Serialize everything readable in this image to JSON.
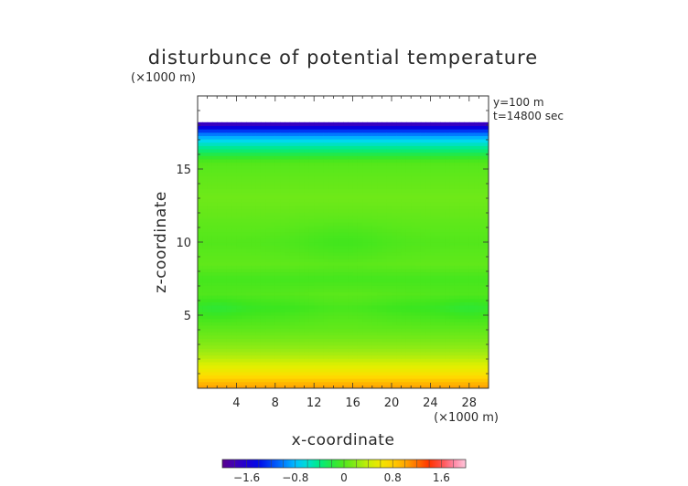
{
  "chart_data": {
    "type": "heatmap",
    "title": "disturbunce of potential temperature",
    "xlabel": "x-coordinate",
    "ylabel": "z-coordinate",
    "x_unit": "(×1000 m)",
    "y_unit": "(×1000 m)",
    "annotations": [
      "y=100 m",
      "t=14800 sec"
    ],
    "xlim": [
      0,
      30
    ],
    "ylim": [
      0,
      20
    ],
    "x_ticks": [
      {
        "value": 4,
        "label": "4"
      },
      {
        "value": 8,
        "label": "8"
      },
      {
        "value": 12,
        "label": "12"
      },
      {
        "value": 16,
        "label": "16"
      },
      {
        "value": 20,
        "label": "20"
      },
      {
        "value": 24,
        "label": "24"
      },
      {
        "value": 28,
        "label": "28"
      }
    ],
    "y_ticks": [
      {
        "value": 5,
        "label": "5"
      },
      {
        "value": 10,
        "label": "10"
      },
      {
        "value": 15,
        "label": "15"
      }
    ],
    "field_top": 18.2,
    "colorbar": {
      "range": [
        -2.0,
        2.0
      ],
      "ticks": [
        {
          "value": -1.6,
          "label": "−1.6"
        },
        {
          "value": -0.8,
          "label": "−0.8"
        },
        {
          "value": 0,
          "label": "0"
        },
        {
          "value": 0.8,
          "label": "0.8"
        },
        {
          "value": 1.6,
          "label": "1.6"
        }
      ]
    },
    "profile": {
      "z": [
        0.0,
        0.3,
        0.6,
        0.9,
        1.3,
        1.7,
        2.1,
        2.6,
        3.2,
        4.0,
        5.0,
        5.5,
        6.5,
        7.5,
        8.5,
        10.0,
        11.5,
        13.0,
        14.5,
        15.5,
        16.0,
        16.5,
        17.0,
        17.4,
        17.7,
        17.95,
        18.2
      ],
      "value": [
        1.05,
        0.95,
        0.82,
        0.7,
        0.55,
        0.45,
        0.35,
        0.25,
        0.15,
        0.05,
        -0.05,
        -0.1,
        0.0,
        -0.05,
        0.05,
        0.0,
        0.05,
        0.1,
        0.05,
        0.0,
        -0.2,
        -0.45,
        -0.7,
        -1.0,
        -1.3,
        -1.6,
        -1.85
      ]
    },
    "center_bumps": [
      {
        "x": 15,
        "z": 5.5,
        "amplitude": 0.06,
        "x_width": 5,
        "z_width": 1.2
      },
      {
        "x": 15,
        "z": 10.0,
        "amplitude": -0.06,
        "x_width": 5,
        "z_width": 1.5
      },
      {
        "x": 2,
        "z": 5.5,
        "amplitude": -0.05,
        "x_width": 2.5,
        "z_width": 0.8
      },
      {
        "x": 28,
        "z": 5.5,
        "amplitude": -0.05,
        "x_width": 2.5,
        "z_width": 0.8
      }
    ]
  }
}
